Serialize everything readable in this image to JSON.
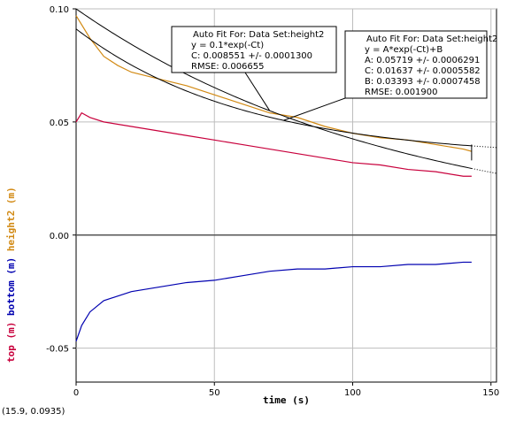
{
  "coord_readout": "(15.9, 0.0935)",
  "chart_data": {
    "type": "line",
    "xlabel": "time (s)",
    "ylabels": [
      {
        "text": "top (m)",
        "color": "#c8003c"
      },
      {
        "text": "bottom (m)",
        "color": "#0000b0"
      },
      {
        "text": "height2 (m)",
        "color": "#d28a14"
      }
    ],
    "xlim": [
      0,
      152
    ],
    "ylim": [
      -0.065,
      0.1
    ],
    "xticks": [
      0,
      50,
      100,
      150
    ],
    "xtick_labels": [
      "0",
      "50",
      "100",
      "150"
    ],
    "yticks": [
      0.1,
      0.05,
      0.0,
      -0.05
    ],
    "ytick_labels": [
      "0.10",
      "0.05",
      "0.00",
      "-0.05"
    ],
    "grid": true,
    "series": [
      {
        "name": "top",
        "color": "#c8003c",
        "x": [
          0,
          2,
          5,
          10,
          20,
          30,
          40,
          50,
          60,
          70,
          80,
          90,
          100,
          110,
          120,
          130,
          140,
          143
        ],
        "y": [
          0.05,
          0.054,
          0.052,
          0.05,
          0.048,
          0.046,
          0.044,
          0.042,
          0.04,
          0.038,
          0.036,
          0.034,
          0.032,
          0.031,
          0.029,
          0.028,
          0.026,
          0.026
        ]
      },
      {
        "name": "bottom",
        "color": "#0000b0",
        "x": [
          0,
          2,
          5,
          10,
          15,
          20,
          30,
          40,
          50,
          60,
          70,
          80,
          90,
          100,
          110,
          120,
          130,
          140,
          143
        ],
        "y": [
          -0.047,
          -0.04,
          -0.034,
          -0.029,
          -0.027,
          -0.025,
          -0.023,
          -0.021,
          -0.02,
          -0.018,
          -0.016,
          -0.015,
          -0.015,
          -0.014,
          -0.014,
          -0.013,
          -0.013,
          -0.012,
          -0.012
        ]
      },
      {
        "name": "height2",
        "color": "#d28a14",
        "x": [
          0,
          5,
          10,
          15,
          20,
          30,
          40,
          50,
          60,
          70,
          80,
          90,
          100,
          110,
          120,
          130,
          140,
          143
        ],
        "y": [
          0.097,
          0.087,
          0.079,
          0.075,
          0.072,
          0.069,
          0.066,
          0.062,
          0.058,
          0.054,
          0.052,
          0.048,
          0.045,
          0.043,
          0.042,
          0.04,
          0.038,
          0.037
        ]
      }
    ],
    "fits": [
      {
        "label_lines": [
          "Auto Fit For:  Data Set:height2",
          "y = 0.1*exp(-Ct)",
          "C: 0.008551 +/- 0.0001300",
          "RMSE: 0.006655"
        ],
        "formula": "0.1*exp(-C*t)",
        "C": 0.008551
      },
      {
        "label_lines": [
          "Auto Fit For:  Data Set:height2",
          "y = A*exp(-Ct)+B",
          "A: 0.05719 +/- 0.0006291",
          "C: 0.01637 +/- 0.0005582",
          "B: 0.03393 +/- 0.0007458",
          "RMSE: 0.001900"
        ],
        "formula": "A*exp(-C*t)+B",
        "A": 0.05719,
        "C": 0.01637,
        "B": 0.03393
      }
    ]
  }
}
